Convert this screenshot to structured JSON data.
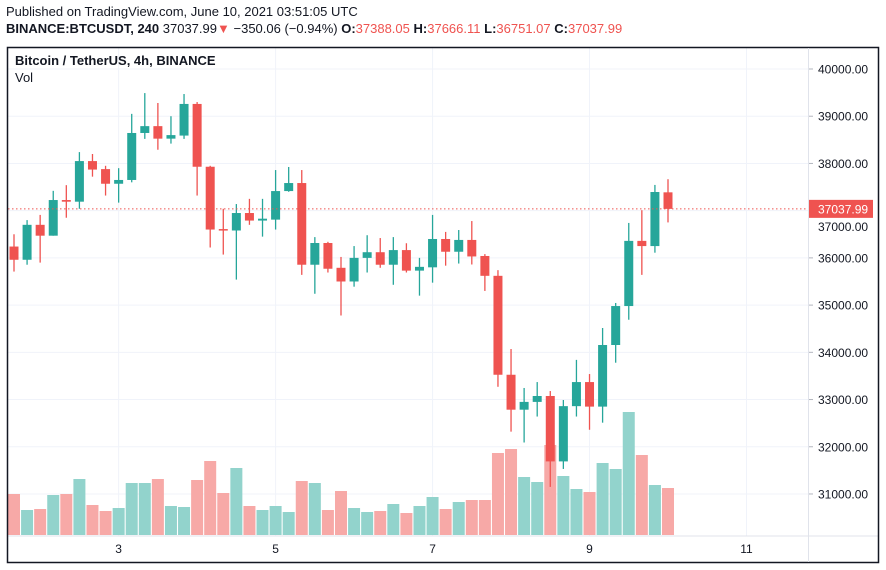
{
  "header": {
    "published": "Published on TradingView.com, June 10, 2021 03:51:05 UTC",
    "symbol": "BINANCE:BTCUSDT, 240",
    "last": "37037.99",
    "change": "−350.06 (−0.94%)",
    "o_label": "O:",
    "o_value": "37388.05",
    "h_label": "H:",
    "h_value": "37666.11",
    "l_label": "L:",
    "l_value": "36751.07",
    "c_label": "C:",
    "c_value": "37037.99"
  },
  "legend": {
    "title": "Bitcoin / TetherUS, 4h, BINANCE",
    "volume": "Vol"
  },
  "colors": {
    "up": "#26a69a",
    "down": "#ef5350",
    "up_vol": "#92d3cc",
    "down_vol": "#f7a9a7",
    "grid": "#f0f3fa"
  },
  "chart_data": {
    "type": "candlestick",
    "title": "Bitcoin / TetherUS, 4h, BINANCE",
    "interval": "4h",
    "ylim": [
      30000,
      40500
    ],
    "y_ticks": [
      "40000.00",
      "39000.00",
      "38000.00",
      "37000.00",
      "36000.00",
      "35000.00",
      "34000.00",
      "33000.00",
      "32000.00",
      "31000.00"
    ],
    "y_tick_values": [
      40000,
      39000,
      38000,
      37000,
      36000,
      35000,
      34000,
      33000,
      32000,
      31000
    ],
    "x_ticks": [
      "3",
      "5",
      "7",
      "9",
      "11"
    ],
    "x_tick_candle_index": [
      8,
      20,
      32,
      44,
      56
    ],
    "last_price_label": "37037.99",
    "volume_units": "relative",
    "candles": [
      [
        36240,
        36500,
        35710,
        35960,
        41
      ],
      [
        35960,
        36800,
        35855,
        36700,
        25
      ],
      [
        36700,
        36910,
        35900,
        36470,
        26
      ],
      [
        36470,
        37420,
        36470,
        37225,
        40
      ],
      [
        37225,
        37540,
        36850,
        37190,
        41
      ],
      [
        37190,
        38240,
        37040,
        38050,
        56
      ],
      [
        38050,
        38200,
        37720,
        37870,
        30
      ],
      [
        37880,
        37950,
        37320,
        37570,
        24
      ],
      [
        37570,
        37900,
        37170,
        37650,
        27
      ],
      [
        37650,
        39050,
        37600,
        38645,
        52
      ],
      [
        38645,
        39490,
        38520,
        38790,
        52
      ],
      [
        38790,
        39280,
        38290,
        38525,
        56
      ],
      [
        38525,
        39000,
        38420,
        38600,
        29
      ],
      [
        38590,
        39470,
        38520,
        39260,
        28
      ],
      [
        39260,
        39300,
        37320,
        37930,
        55
      ],
      [
        37930,
        37950,
        36220,
        36600,
        74
      ],
      [
        36610,
        37040,
        36070,
        36580,
        42
      ],
      [
        36580,
        37140,
        35540,
        36950,
        67
      ],
      [
        36950,
        37250,
        36700,
        36790,
        29
      ],
      [
        36790,
        37250,
        36450,
        36830,
        25
      ],
      [
        36810,
        37860,
        36600,
        37415,
        29
      ],
      [
        37415,
        37925,
        37400,
        37585,
        23
      ],
      [
        37585,
        37860,
        35640,
        35855,
        54
      ],
      [
        35855,
        36440,
        35240,
        36315,
        52
      ],
      [
        36315,
        36340,
        35690,
        35770,
        25
      ],
      [
        35790,
        36020,
        34780,
        35500,
        44
      ],
      [
        35500,
        36250,
        35390,
        36000,
        27
      ],
      [
        36000,
        36480,
        35690,
        36120,
        23
      ],
      [
        36120,
        36420,
        35790,
        35855,
        24
      ],
      [
        35855,
        36440,
        35430,
        36165,
        31
      ],
      [
        36165,
        36310,
        35690,
        35730,
        22
      ],
      [
        35730,
        36000,
        35200,
        35810,
        29
      ],
      [
        35800,
        36910,
        35475,
        36400,
        38
      ],
      [
        36400,
        36550,
        35835,
        36130,
        26
      ],
      [
        36130,
        36590,
        35880,
        36380,
        33
      ],
      [
        36380,
        36780,
        35860,
        36030,
        35
      ],
      [
        36040,
        36080,
        35300,
        35620,
        35
      ],
      [
        35620,
        35740,
        33270,
        33525,
        82
      ],
      [
        33525,
        34070,
        32320,
        32785,
        86
      ],
      [
        32785,
        33245,
        32090,
        32950,
        58
      ],
      [
        32950,
        33370,
        32640,
        33075,
        53
      ],
      [
        33075,
        33180,
        31150,
        31690,
        90
      ],
      [
        31690,
        32990,
        31530,
        32860,
        59
      ],
      [
        32860,
        33840,
        32640,
        33370,
        46
      ],
      [
        33370,
        33540,
        32360,
        32850,
        43
      ],
      [
        32850,
        34515,
        32510,
        34155,
        72
      ],
      [
        34155,
        35045,
        33780,
        34980,
        66
      ],
      [
        34980,
        36740,
        34690,
        36360,
        123
      ],
      [
        36360,
        37010,
        35640,
        36250,
        80
      ],
      [
        36250,
        37545,
        36110,
        37395,
        50
      ],
      [
        37388.05,
        37666.11,
        36751.07,
        37037.99,
        47
      ]
    ],
    "candle_fields": [
      "open",
      "high",
      "low",
      "close",
      "volume"
    ]
  }
}
